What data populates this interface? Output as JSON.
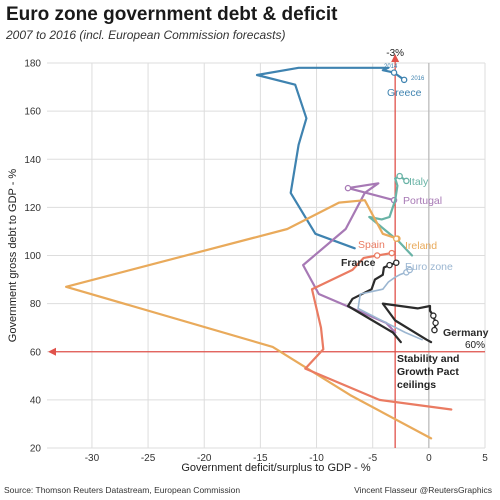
{
  "chart_data": {
    "type": "line",
    "title": "Euro zone government debt & deficit",
    "subtitle": "2007 to 2016 (incl. European Commission forecasts)",
    "xlabel": "Government deficit/surplus to GDP - %",
    "ylabel": "Government gross debt to GDP - %",
    "xlim": [
      -34,
      5
    ],
    "ylim": [
      20,
      180
    ],
    "xticks": [
      -30,
      -25,
      -20,
      -15,
      -10,
      -5,
      0,
      5
    ],
    "yticks": [
      20,
      40,
      60,
      80,
      100,
      120,
      140,
      160,
      180
    ],
    "grid": true,
    "series": [
      {
        "name": "Greece",
        "color": "#3f83b0",
        "x": [
          -6.6,
          -10.1,
          -12.3,
          -11.6,
          -10.9,
          -11.9,
          -15.3,
          -11.6,
          -3.6,
          -4.1,
          -3.1,
          -2.2
        ],
        "y": [
          103,
          109,
          126,
          146,
          157,
          171,
          175,
          178,
          178,
          177,
          176,
          173
        ]
      },
      {
        "name": "Portugal",
        "color": "#a779b5",
        "x": [
          -3.0,
          -3.8,
          -9.8,
          -11.2,
          -7.4,
          -5.7,
          -4.8,
          -4.5,
          -7.2,
          -3.1
        ],
        "y": [
          68,
          72,
          84,
          96,
          111,
          126,
          129,
          130,
          128,
          123
        ]
      },
      {
        "name": "Italy",
        "color": "#69b3a6",
        "x": [
          -1.5,
          -2.7,
          -5.3,
          -4.2,
          -3.5,
          -3.0,
          -2.8,
          -3.0,
          -2.6,
          -2.0
        ],
        "y": [
          100,
          106,
          116,
          115,
          116,
          123,
          129,
          132,
          133,
          131
        ]
      },
      {
        "name": "Ireland",
        "color": "#e9aa5b",
        "x": [
          0.2,
          -7.0,
          -13.9,
          -32.3,
          -12.6,
          -8.0,
          -5.7,
          -4.1,
          -2.8,
          -2.9
        ],
        "y": [
          24,
          42,
          62,
          87,
          111,
          122,
          123,
          109,
          107,
          107
        ]
      },
      {
        "name": "Spain",
        "color": "#ea7b62",
        "x": [
          2.0,
          -4.4,
          -11.0,
          -9.4,
          -9.6,
          -10.4,
          -6.8,
          -5.8,
          -4.6,
          -3.3
        ],
        "y": [
          36,
          40,
          53,
          61,
          70,
          86,
          94,
          99,
          100,
          101
        ]
      },
      {
        "name": "France",
        "color": "#2b2b2b",
        "x": [
          -2.5,
          -3.2,
          -7.2,
          -6.8,
          -5.1,
          -4.8,
          -4.1,
          -4.0,
          -3.5,
          -2.9
        ],
        "y": [
          64,
          68,
          79,
          82,
          86,
          90,
          92,
          95,
          96,
          97
        ]
      },
      {
        "name": "Euro zone",
        "color": "#9bb6d1",
        "x": [
          -0.6,
          -2.1,
          -6.3,
          -6.1,
          -4.1,
          -3.6,
          -3.0,
          -2.6,
          -2.0,
          -1.7
        ],
        "y": [
          65,
          68,
          78,
          84,
          86,
          89,
          91,
          92,
          93,
          94
        ]
      },
      {
        "name": "Germany",
        "color": "#2b2b2b",
        "x": [
          0.2,
          -0.2,
          -3.0,
          -4.1,
          -1.0,
          0.1,
          0.1,
          0.4,
          0.6,
          0.5
        ],
        "y": [
          64,
          65,
          73,
          80,
          78,
          79,
          77,
          75,
          72,
          69
        ]
      }
    ],
    "year_labels": [
      "2014",
      "2016"
    ],
    "reference_lines": [
      {
        "label": "-3%",
        "axis": "x",
        "value": -3,
        "color": "#e0524b"
      },
      {
        "label": "60%",
        "axis": "y",
        "value": 60,
        "color": "#e0524b"
      }
    ],
    "annotation": "Stability and\nGrowth Pact\nceilings"
  },
  "footer": {
    "source": "Source: Thomson Reuters Datastream, European Commission",
    "credit": "Vincent Flasseur @ReutersGraphics"
  }
}
